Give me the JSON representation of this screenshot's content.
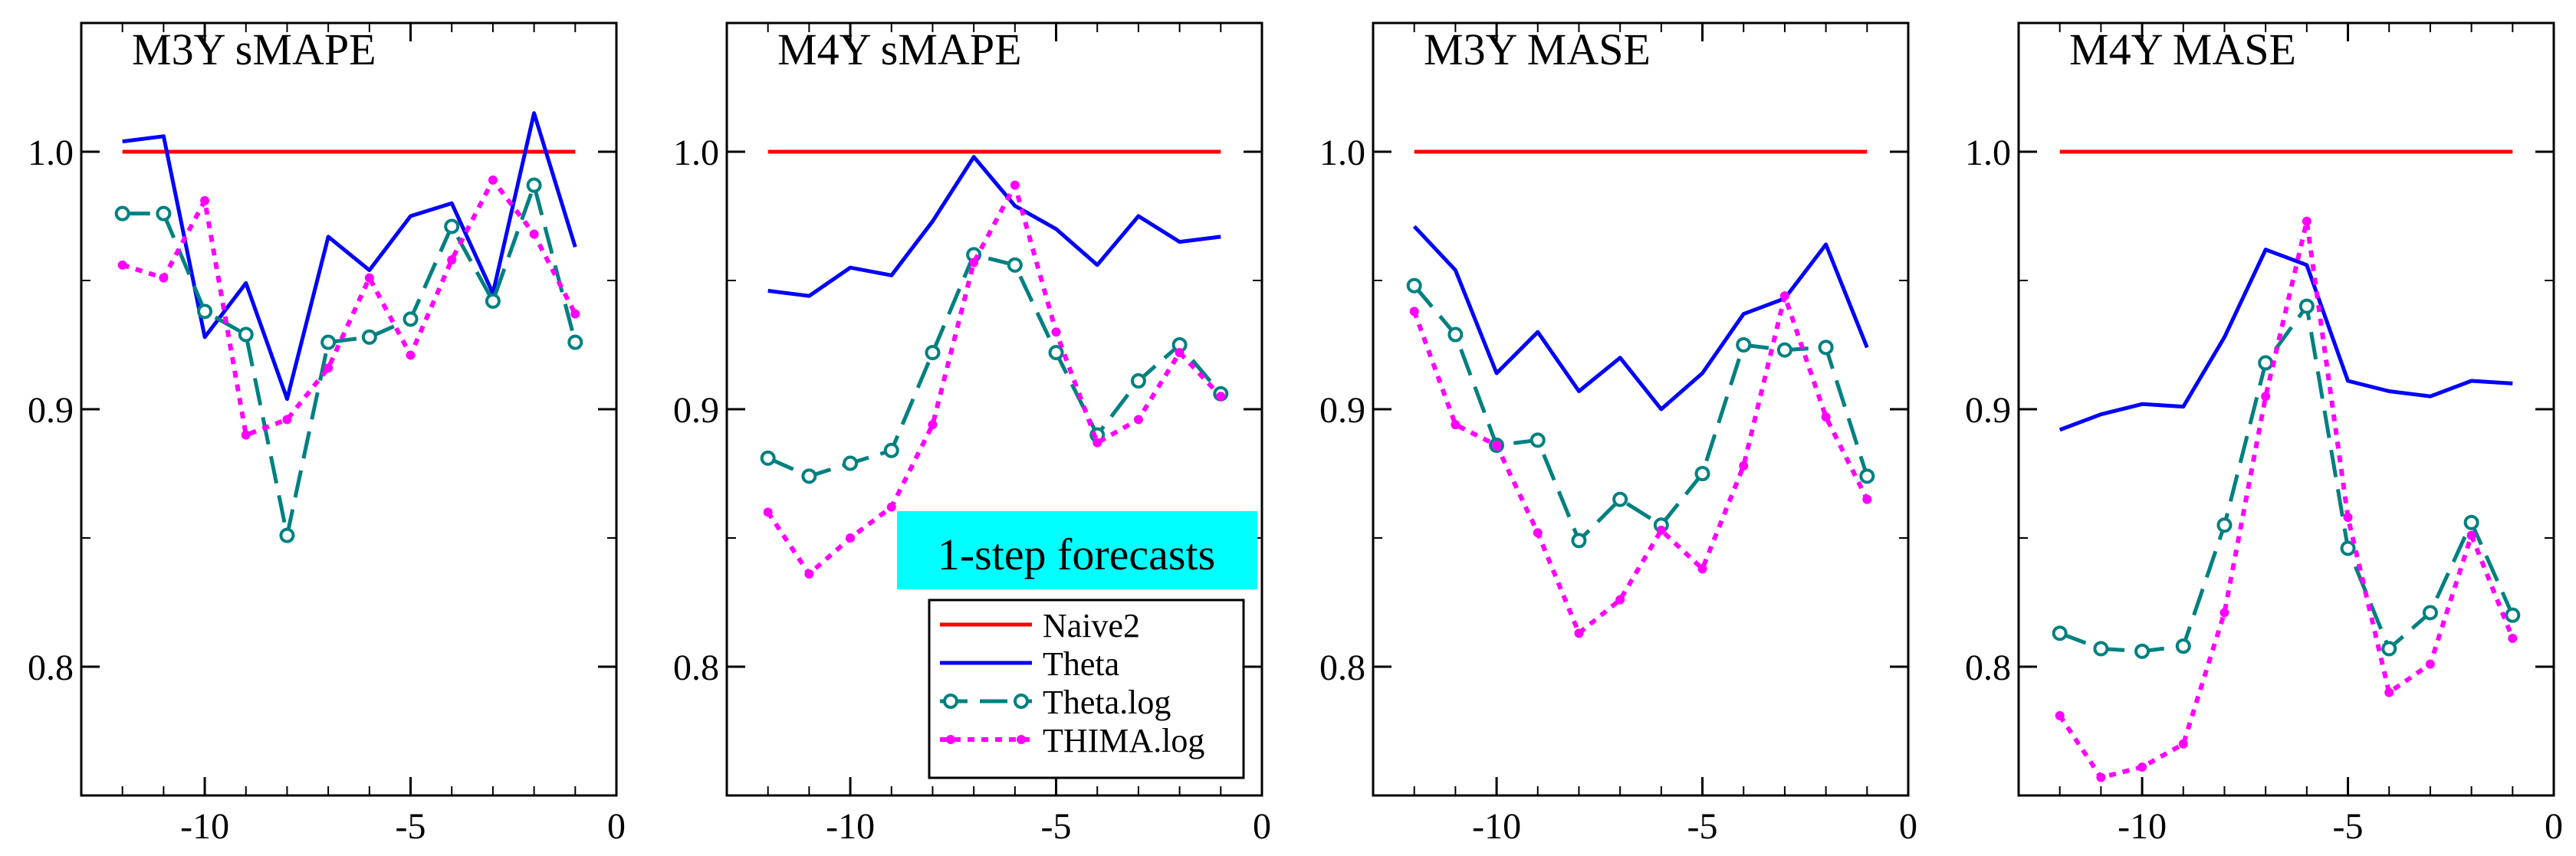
{
  "figure": {
    "annotation": "1-step forecasts",
    "annotation_bg": "#00ffff"
  },
  "legend": {
    "items": [
      {
        "name": "Naive2",
        "color": "#ff0000",
        "style": "solid",
        "marker": "none"
      },
      {
        "name": "Theta",
        "color": "#0000ff",
        "style": "solid",
        "marker": "none"
      },
      {
        "name": "Theta.log",
        "color": "#008080",
        "style": "dashed",
        "marker": "open-circle"
      },
      {
        "name": "THIMA.log",
        "color": "#ff00ff",
        "style": "dotted",
        "marker": "dot"
      }
    ]
  },
  "chart_data": [
    {
      "type": "line",
      "title": "M3Y sMAPE",
      "xlim": [
        -13,
        0
      ],
      "ylim": [
        0.75,
        1.05
      ],
      "xticks": [
        -10,
        -5,
        0
      ],
      "yticks": [
        0.8,
        0.9,
        1.0
      ],
      "ytick_labels": [
        "0.8",
        "0.9",
        "1.0"
      ],
      "x": [
        -12,
        -11,
        -10,
        -9,
        -8,
        -7,
        -6,
        -5,
        -4,
        -3,
        -2,
        -1
      ],
      "series": [
        {
          "name": "Naive2",
          "values": [
            1.0,
            1.0,
            1.0,
            1.0,
            1.0,
            1.0,
            1.0,
            1.0,
            1.0,
            1.0,
            1.0,
            1.0
          ]
        },
        {
          "name": "Theta",
          "values": [
            1.004,
            1.006,
            0.928,
            0.949,
            0.904,
            0.967,
            0.954,
            0.975,
            0.98,
            0.945,
            1.015,
            0.963
          ]
        },
        {
          "name": "Theta.log",
          "values": [
            0.976,
            0.976,
            0.938,
            0.929,
            0.851,
            0.926,
            0.928,
            0.935,
            0.971,
            0.942,
            0.987,
            0.926
          ]
        },
        {
          "name": "THIMA.log",
          "values": [
            0.956,
            0.951,
            0.981,
            0.89,
            0.896,
            0.916,
            0.951,
            0.921,
            0.958,
            0.989,
            0.968,
            0.937
          ]
        }
      ]
    },
    {
      "type": "line",
      "title": "M4Y sMAPE",
      "xlim": [
        -13,
        0
      ],
      "ylim": [
        0.75,
        1.05
      ],
      "xticks": [
        -10,
        -5,
        0
      ],
      "yticks": [
        0.8,
        0.9,
        1.0
      ],
      "ytick_labels": [
        "0.8",
        "0.9",
        "1.0"
      ],
      "x": [
        -12,
        -11,
        -10,
        -9,
        -8,
        -7,
        -6,
        -5,
        -4,
        -3,
        -2,
        -1
      ],
      "series": [
        {
          "name": "Naive2",
          "values": [
            1.0,
            1.0,
            1.0,
            1.0,
            1.0,
            1.0,
            1.0,
            1.0,
            1.0,
            1.0,
            1.0,
            1.0
          ]
        },
        {
          "name": "Theta",
          "values": [
            0.946,
            0.944,
            0.955,
            0.952,
            0.973,
            0.998,
            0.979,
            0.97,
            0.956,
            0.975,
            0.965,
            0.967
          ]
        },
        {
          "name": "Theta.log",
          "values": [
            0.881,
            0.874,
            0.879,
            0.884,
            0.922,
            0.96,
            0.956,
            0.922,
            0.89,
            0.911,
            0.925,
            0.906
          ]
        },
        {
          "name": "THIMA.log",
          "values": [
            0.86,
            0.836,
            0.85,
            0.862,
            0.894,
            0.957,
            0.987,
            0.93,
            0.887,
            0.896,
            0.922,
            0.905
          ]
        }
      ]
    },
    {
      "type": "line",
      "title": "M3Y MASE",
      "xlim": [
        -13,
        0
      ],
      "ylim": [
        0.75,
        1.05
      ],
      "xticks": [
        -10,
        -5,
        0
      ],
      "yticks": [
        0.8,
        0.9,
        1.0
      ],
      "ytick_labels": [
        "0.8",
        "0.9",
        "1.0"
      ],
      "x": [
        -12,
        -11,
        -10,
        -9,
        -8,
        -7,
        -6,
        -5,
        -4,
        -3,
        -2,
        -1
      ],
      "series": [
        {
          "name": "Naive2",
          "values": [
            1.0,
            1.0,
            1.0,
            1.0,
            1.0,
            1.0,
            1.0,
            1.0,
            1.0,
            1.0,
            1.0,
            1.0
          ]
        },
        {
          "name": "Theta",
          "values": [
            0.971,
            0.954,
            0.914,
            0.93,
            0.907,
            0.92,
            0.9,
            0.914,
            0.937,
            0.943,
            0.964,
            0.924
          ]
        },
        {
          "name": "Theta.log",
          "values": [
            0.948,
            0.929,
            0.886,
            0.888,
            0.849,
            0.865,
            0.855,
            0.875,
            0.925,
            0.923,
            0.924,
            0.874
          ]
        },
        {
          "name": "THIMA.log",
          "values": [
            0.938,
            0.894,
            0.886,
            0.852,
            0.813,
            0.826,
            0.853,
            0.838,
            0.878,
            0.944,
            0.897,
            0.865
          ]
        }
      ]
    },
    {
      "type": "line",
      "title": "M4Y MASE",
      "xlim": [
        -13,
        0
      ],
      "ylim": [
        0.75,
        1.05
      ],
      "xticks": [
        -10,
        -5,
        0
      ],
      "yticks": [
        0.8,
        0.9,
        1.0
      ],
      "ytick_labels": [
        "0.8",
        "0.9",
        "1.0"
      ],
      "x": [
        -12,
        -11,
        -10,
        -9,
        -8,
        -7,
        -6,
        -5,
        -4,
        -3,
        -2,
        -1
      ],
      "series": [
        {
          "name": "Naive2",
          "values": [
            1.0,
            1.0,
            1.0,
            1.0,
            1.0,
            1.0,
            1.0,
            1.0,
            1.0,
            1.0,
            1.0,
            1.0
          ]
        },
        {
          "name": "Theta",
          "values": [
            0.892,
            0.898,
            0.902,
            0.901,
            0.928,
            0.962,
            0.956,
            0.911,
            0.907,
            0.905,
            0.911,
            0.91
          ]
        },
        {
          "name": "Theta.log",
          "values": [
            0.813,
            0.807,
            0.806,
            0.808,
            0.855,
            0.918,
            0.94,
            0.846,
            0.807,
            0.821,
            0.856,
            0.82
          ]
        },
        {
          "name": "THIMA.log",
          "values": [
            0.781,
            0.757,
            0.761,
            0.77,
            0.821,
            0.905,
            0.973,
            0.858,
            0.79,
            0.801,
            0.851,
            0.811
          ]
        }
      ]
    }
  ]
}
